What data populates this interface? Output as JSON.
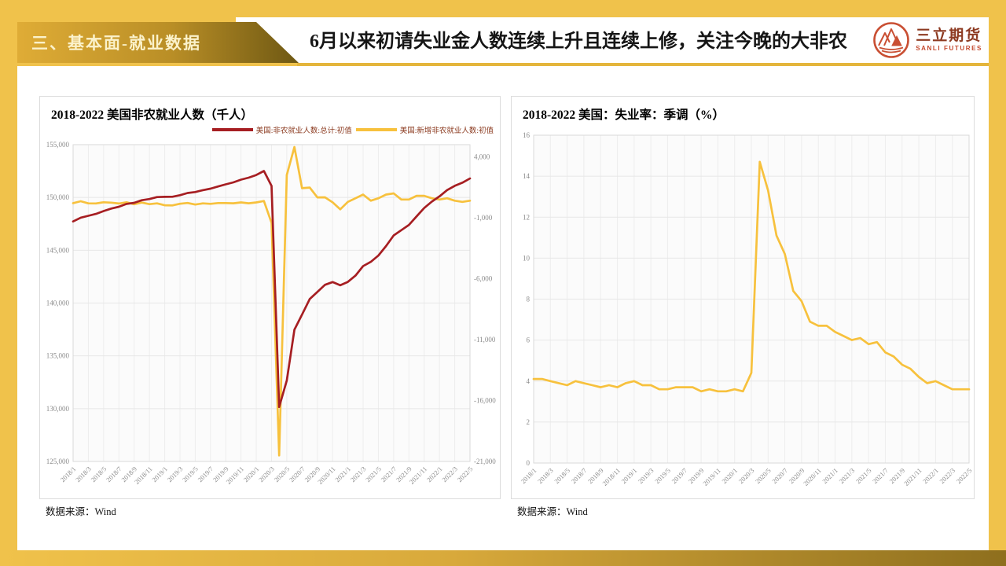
{
  "page": {
    "section_label": "三、基本面-就业数据",
    "headline": "6月以来初请失业金人数连续上升且连续上修，关注今晚的大非农",
    "logo": {
      "name_cn": "三立期货",
      "name_en": "SANLI FUTURES"
    }
  },
  "colors": {
    "gold_background": "#F0C24B",
    "header_gradient_dark": "#6E5813",
    "underline_gold": "#E4B53C",
    "series_red": "#A61E22",
    "series_yellow": "#F7C13D",
    "legend_text": "#8B3A1F",
    "axis_text": "#8A8A8A",
    "grid_line": "#E7E7E7"
  },
  "chart_data": [
    {
      "type": "line",
      "title": "2018-2022 美国非农就业人数（千人）",
      "source": "数据来源：Wind",
      "x": [
        "2018/1",
        "2018/2",
        "2018/3",
        "2018/4",
        "2018/5",
        "2018/6",
        "2018/7",
        "2018/8",
        "2018/9",
        "2018/10",
        "2018/11",
        "2018/12",
        "2019/1",
        "2019/2",
        "2019/3",
        "2019/4",
        "2019/5",
        "2019/6",
        "2019/7",
        "2019/8",
        "2019/9",
        "2019/10",
        "2019/11",
        "2019/12",
        "2020/1",
        "2020/2",
        "2020/3",
        "2020/4",
        "2020/5",
        "2020/6",
        "2020/7",
        "2020/8",
        "2020/9",
        "2020/10",
        "2020/11",
        "2020/12",
        "2021/1",
        "2021/2",
        "2021/3",
        "2021/4",
        "2021/5",
        "2021/6",
        "2021/7",
        "2021/8",
        "2021/9",
        "2021/10",
        "2021/11",
        "2021/12",
        "2022/1",
        "2022/2",
        "2022/3",
        "2022/4",
        "2022/5"
      ],
      "x_tick_labels": [
        "2018/1",
        "2018/3",
        "2018/5",
        "2018/7",
        "2018/9",
        "2018/11",
        "2019/1",
        "2019/3",
        "2019/5",
        "2019/7",
        "2019/9",
        "2019/11",
        "2020/1",
        "2020/3",
        "2020/5",
        "2020/7",
        "2020/9",
        "2020/11",
        "2021/1",
        "2021/3",
        "2021/5",
        "2021/7",
        "2021/9",
        "2021/11",
        "2022/1",
        "2022/3",
        "2022/5"
      ],
      "series": [
        {
          "name": "美国:非农就业人数:总计:初值",
          "axis": "left",
          "color": "#A61E22",
          "values": [
            147726,
            148084,
            148264,
            148439,
            148708,
            148948,
            149116,
            149386,
            149494,
            149738,
            149851,
            150033,
            150058,
            150068,
            150215,
            150425,
            150510,
            150689,
            150829,
            151036,
            151244,
            151429,
            151690,
            151874,
            152129,
            152504,
            151090,
            130161,
            132669,
            137477,
            138903,
            140379,
            141047,
            141727,
            141991,
            141684,
            142000,
            142600,
            143500,
            143900,
            144500,
            145400,
            146400,
            146900,
            147400,
            148200,
            149000,
            149600,
            150100,
            150700,
            151100,
            151400,
            151800
          ]
        },
        {
          "name": "美国:新增非农就业人数:初值",
          "axis": "right",
          "color": "#F7C13D",
          "values": [
            200,
            358,
            180,
            175,
            269,
            240,
            168,
            270,
            108,
            244,
            113,
            182,
            25,
            10,
            147,
            210,
            85,
            179,
            140,
            207,
            208,
            185,
            261,
            184,
            255,
            375,
            -1414,
            -20500,
            2508,
            4808,
            1426,
            1476,
            668,
            680,
            264,
            -307,
            300,
            600,
            900,
            400,
            600,
            900,
            1000,
            500,
            500,
            800,
            800,
            600,
            500,
            600,
            400,
            300,
            400
          ]
        }
      ],
      "left_axis": {
        "min": 125000,
        "max": 155000,
        "tick_values": [
          155000,
          150000,
          145000,
          140000,
          135000,
          130000,
          125000
        ],
        "tick_labels": [
          "155,000",
          "150,000",
          "145,000",
          "140,000",
          "135,000",
          "130,000",
          "125,000"
        ]
      },
      "right_axis": {
        "min": -21000,
        "max": 5000,
        "tick_values": [
          4000,
          -1000,
          -6000,
          -11000,
          -16000,
          -21000
        ],
        "tick_labels": [
          "4,000",
          "-1,000",
          "-6,000",
          "-11,000",
          "-16,000",
          "-21,000"
        ]
      },
      "grid": true,
      "legend_position": "top-right"
    },
    {
      "type": "line",
      "title": "2018-2022 美国：失业率：季调（%）",
      "source": "数据来源：Wind",
      "x": [
        "2018/1",
        "2018/2",
        "2018/3",
        "2018/4",
        "2018/5",
        "2018/6",
        "2018/7",
        "2018/8",
        "2018/9",
        "2018/10",
        "2018/11",
        "2018/12",
        "2019/1",
        "2019/2",
        "2019/3",
        "2019/4",
        "2019/5",
        "2019/6",
        "2019/7",
        "2019/8",
        "2019/9",
        "2019/10",
        "2019/11",
        "2019/12",
        "2020/1",
        "2020/2",
        "2020/3",
        "2020/4",
        "2020/5",
        "2020/6",
        "2020/7",
        "2020/8",
        "2020/9",
        "2020/10",
        "2020/11",
        "2020/12",
        "2021/1",
        "2021/2",
        "2021/3",
        "2021/4",
        "2021/5",
        "2021/6",
        "2021/7",
        "2021/8",
        "2021/9",
        "2021/10",
        "2021/11",
        "2021/12",
        "2022/1",
        "2022/2",
        "2022/3",
        "2022/4",
        "2022/5"
      ],
      "x_tick_labels": [
        "2018/1",
        "2018/3",
        "2018/5",
        "2018/7",
        "2018/9",
        "2018/11",
        "2019/1",
        "2019/3",
        "2019/5",
        "2019/7",
        "2019/9",
        "2019/11",
        "2020/1",
        "2020/3",
        "2020/5",
        "2020/7",
        "2020/9",
        "2020/11",
        "2021/1",
        "2021/3",
        "2021/5",
        "2021/7",
        "2021/9",
        "2021/11",
        "2022/1",
        "2022/3",
        "2022/5"
      ],
      "series": [
        {
          "name": "美国:失业率:季调",
          "axis": "left",
          "color": "#F7C13D",
          "values": [
            4.1,
            4.1,
            4.0,
            3.9,
            3.8,
            4.0,
            3.9,
            3.8,
            3.7,
            3.8,
            3.7,
            3.9,
            4.0,
            3.8,
            3.8,
            3.6,
            3.6,
            3.7,
            3.7,
            3.7,
            3.5,
            3.6,
            3.5,
            3.5,
            3.6,
            3.5,
            4.4,
            14.7,
            13.3,
            11.1,
            10.2,
            8.4,
            7.9,
            6.9,
            6.7,
            6.7,
            6.4,
            6.2,
            6.0,
            6.1,
            5.8,
            5.9,
            5.4,
            5.2,
            4.8,
            4.6,
            4.2,
            3.9,
            4.0,
            3.8,
            3.6,
            3.6,
            3.6
          ]
        }
      ],
      "left_axis": {
        "min": 0,
        "max": 16,
        "tick_values": [
          16,
          14,
          12,
          10,
          8,
          6,
          4,
          2,
          0
        ],
        "tick_labels": [
          "16",
          "14",
          "12",
          "10",
          "8",
          "6",
          "4",
          "2",
          "0"
        ]
      },
      "grid": true,
      "legend_position": "none"
    }
  ]
}
